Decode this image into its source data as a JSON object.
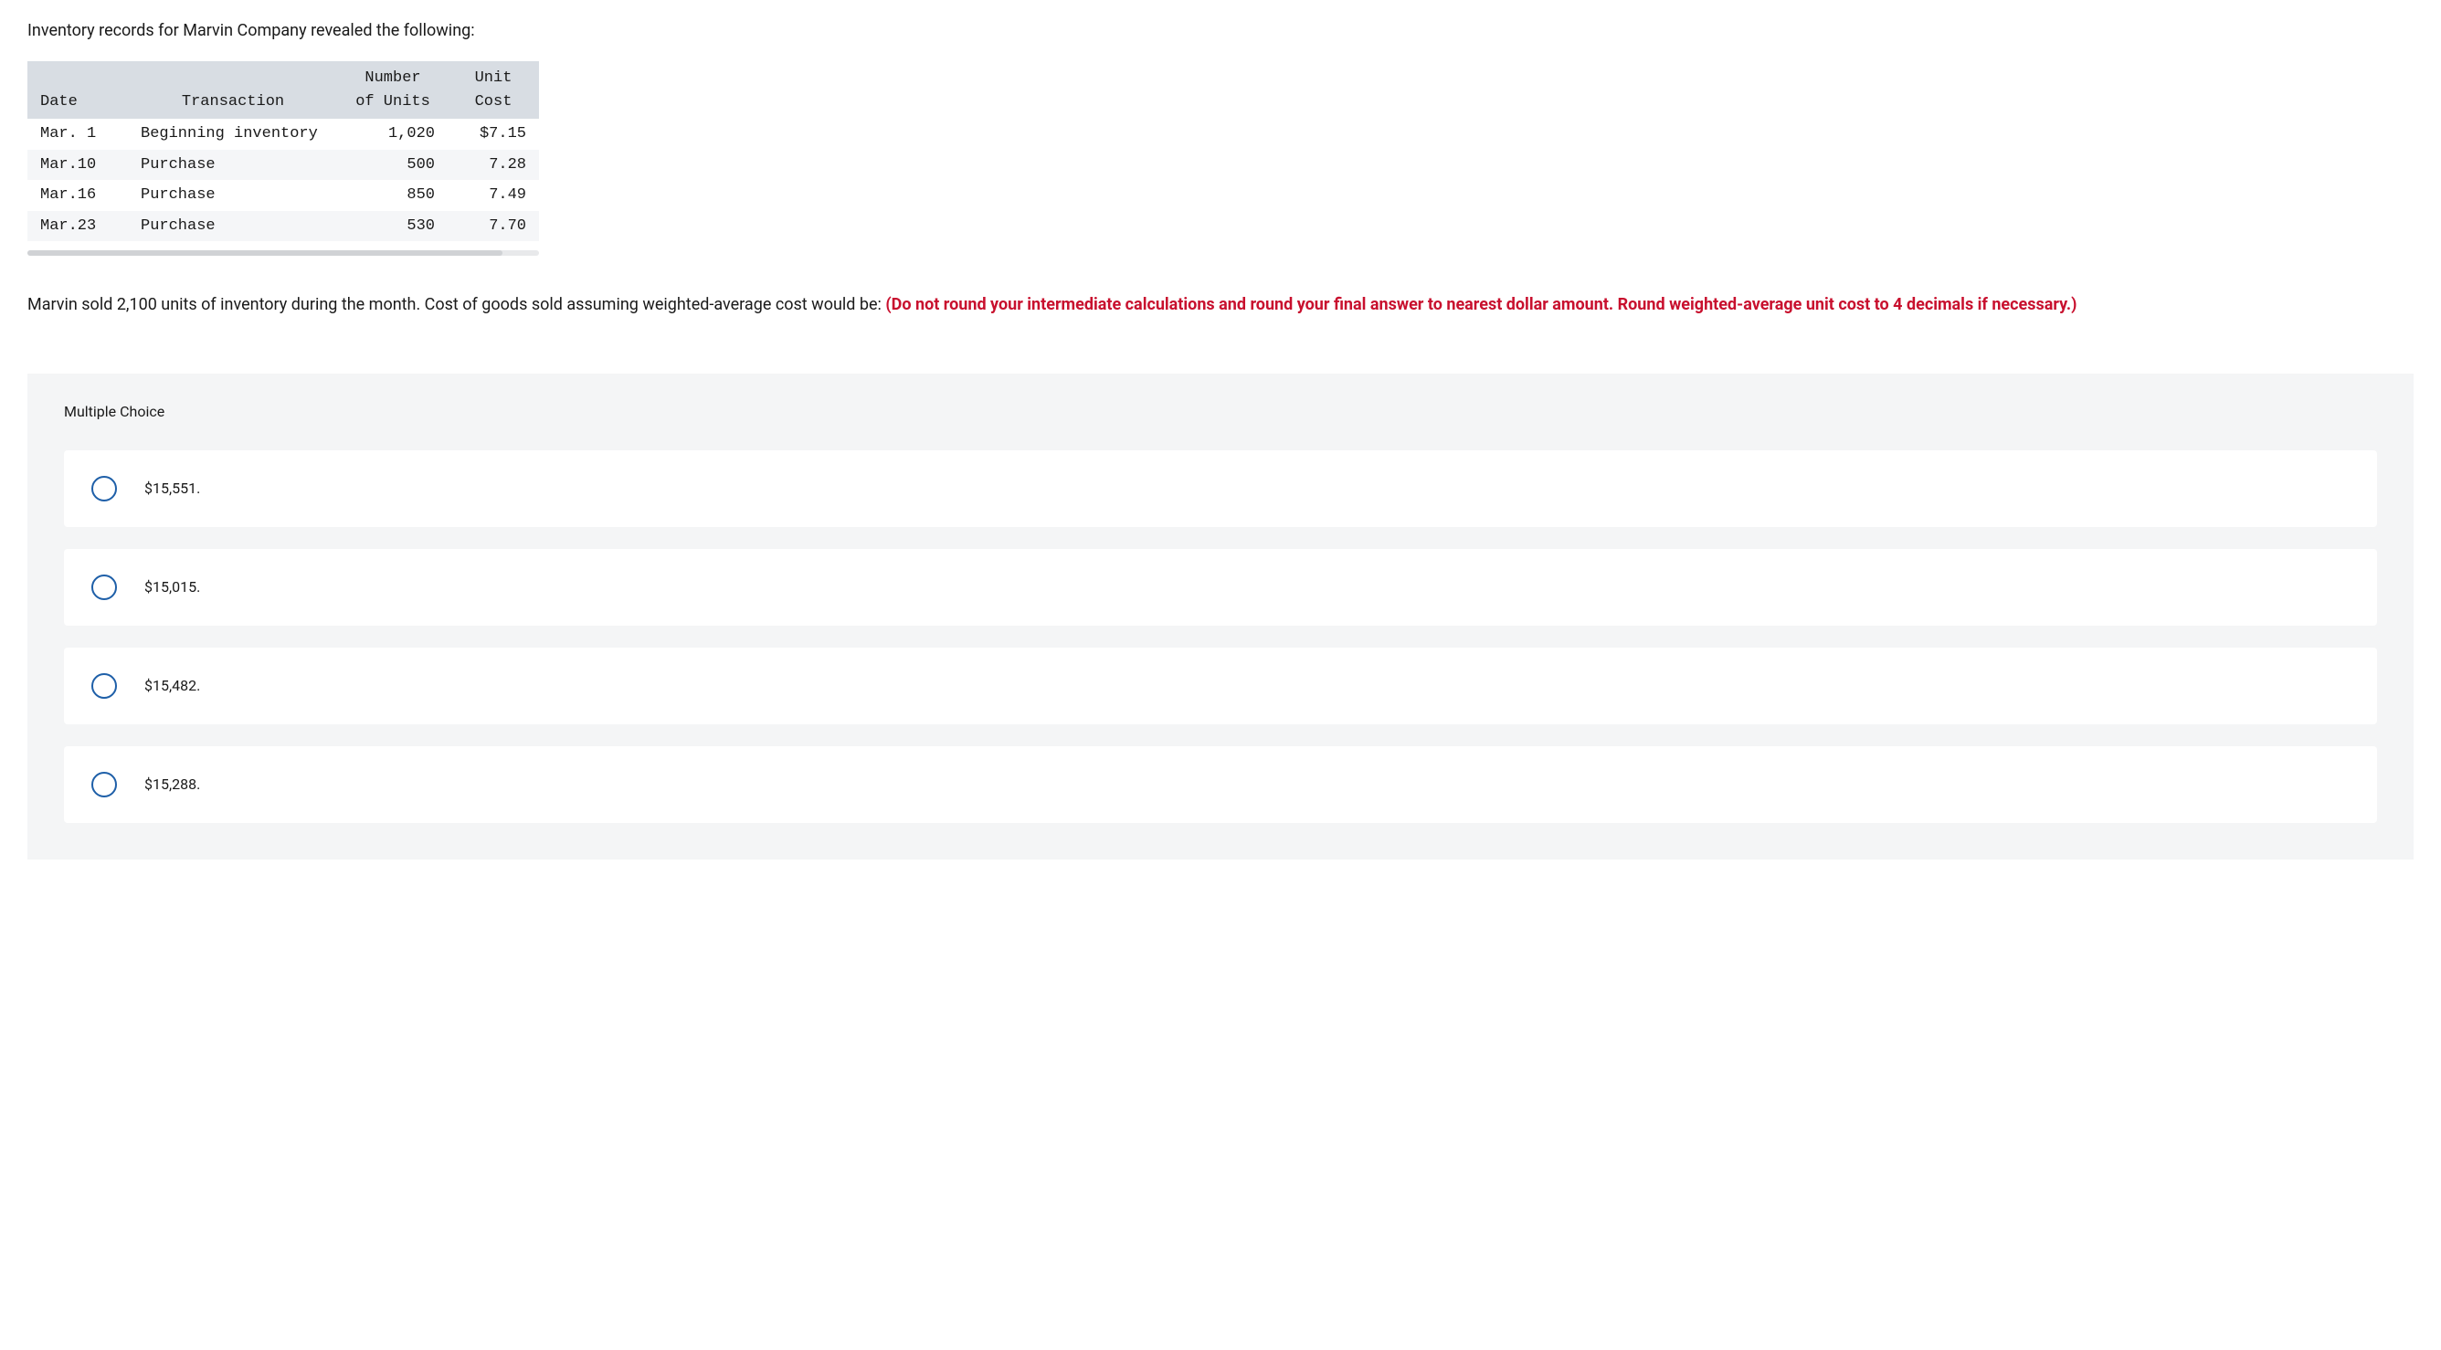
{
  "intro": "Inventory records for Marvin Company revealed the following:",
  "table": {
    "headers": {
      "date": "Date",
      "transaction": "Transaction",
      "units_line1": "Number",
      "units_line2": "of Units",
      "cost_line1": "Unit",
      "cost_line2": "Cost"
    },
    "rows": [
      {
        "date": "Mar. 1",
        "transaction": "Beginning inventory",
        "units": "1,020",
        "cost": "$7.15"
      },
      {
        "date": "Mar.10",
        "transaction": "Purchase",
        "units": "500",
        "cost": "7.28"
      },
      {
        "date": "Mar.16",
        "transaction": "Purchase",
        "units": "850",
        "cost": "7.49"
      },
      {
        "date": "Mar.23",
        "transaction": "Purchase",
        "units": "530",
        "cost": "7.70"
      }
    ],
    "header_bg": "#d8dde3",
    "row_alt_bg": "#f5f6f8",
    "font_family": "Courier New"
  },
  "question": {
    "part1": "Marvin sold 2,100 units of inventory during the month. Cost of goods sold assuming weighted-average cost would be: ",
    "emphasis": "(Do not round your intermediate calculations and round your final answer to nearest dollar amount. Round weighted-average unit cost to 4 decimals if necessary.)",
    "emphasis_color": "#c8102e"
  },
  "multiple_choice": {
    "title": "Multiple Choice",
    "options": [
      {
        "label": "$15,551."
      },
      {
        "label": "$15,015."
      },
      {
        "label": "$15,482."
      },
      {
        "label": "$15,288."
      }
    ],
    "container_bg": "#f4f5f6",
    "option_bg": "#ffffff",
    "radio_border_color": "#1e5fa8"
  }
}
